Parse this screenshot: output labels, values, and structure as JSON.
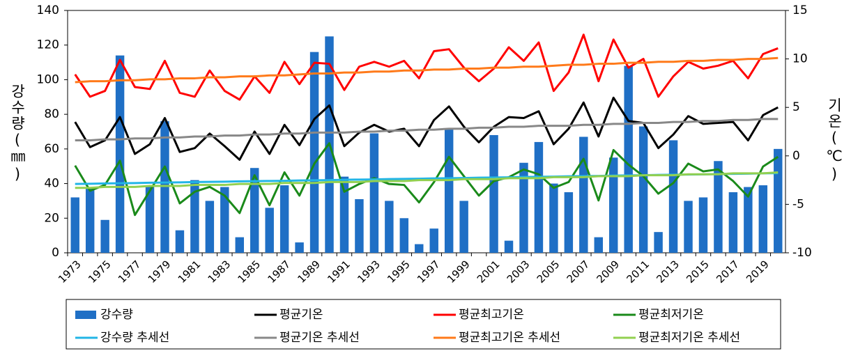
{
  "chart_data": {
    "type": "combo",
    "y_label": "강수량(㎜)",
    "y2_label": "기온(℃)",
    "categories": [
      "1973",
      null,
      "1975",
      null,
      "1977",
      null,
      "1979",
      null,
      "1981",
      null,
      "1983",
      null,
      "1985",
      null,
      "1987",
      null,
      "1989",
      null,
      "1991",
      null,
      "1993",
      null,
      "1995",
      null,
      "1997",
      null,
      "1999",
      null,
      "2001",
      null,
      "2003",
      null,
      "2005",
      null,
      "2007",
      null,
      "2009",
      null,
      "2011",
      null,
      "2013",
      null,
      "2015",
      null,
      "2017",
      null,
      "2019",
      null
    ],
    "ylim": [
      0,
      140
    ],
    "yticks": [
      0,
      20,
      40,
      60,
      80,
      100,
      120,
      140
    ],
    "y2lim": [
      -10,
      15
    ],
    "y2ticks": [
      -10,
      -5,
      0,
      5,
      10,
      15
    ],
    "series": [
      {
        "name": "강수량",
        "type": "bar",
        "color": "#1f6fc5",
        "values": [
          32,
          38,
          19,
          114,
          0,
          38,
          76,
          13,
          42,
          30,
          38,
          9,
          49,
          26,
          39,
          6,
          116,
          125,
          44,
          31,
          69,
          30,
          20,
          5,
          14,
          72,
          30,
          0,
          68,
          7,
          52,
          64,
          40,
          35,
          67,
          9,
          55,
          108,
          73,
          12,
          65,
          30,
          32,
          53,
          35,
          38,
          39,
          60
        ]
      },
      {
        "name": "평균기온",
        "type": "line",
        "axis": "y2",
        "color": "#000000",
        "values": [
          3.5,
          0.9,
          1.6,
          4.0,
          0.2,
          1.2,
          3.9,
          0.4,
          0.8,
          2.3,
          1.0,
          -0.4,
          2.5,
          0.2,
          3.2,
          1.1,
          3.8,
          5.2,
          1.0,
          2.4,
          3.2,
          2.5,
          2.8,
          1.0,
          3.7,
          5.1,
          3.0,
          1.4,
          3.0,
          4.0,
          3.9,
          4.6,
          1.2,
          2.8,
          5.5,
          2.0,
          6.0,
          3.6,
          3.4,
          0.8,
          2.2,
          4.1,
          3.3,
          3.4,
          3.5,
          1.6,
          4.2,
          5.0
        ]
      },
      {
        "name": "평균최고기온",
        "type": "line",
        "axis": "y2",
        "color": "#ff0000",
        "values": [
          8.4,
          6.1,
          6.7,
          9.9,
          7.1,
          6.9,
          9.8,
          6.5,
          6.1,
          8.8,
          6.7,
          5.8,
          8.2,
          6.5,
          9.7,
          7.4,
          9.6,
          9.5,
          6.8,
          9.2,
          9.7,
          9.2,
          9.8,
          8.0,
          10.8,
          11.0,
          9.1,
          7.7,
          9.0,
          11.2,
          9.8,
          11.7,
          6.7,
          8.6,
          12.5,
          7.7,
          12.0,
          9.1,
          10.0,
          6.1,
          8.2,
          9.7,
          9.0,
          9.3,
          9.8,
          8.0,
          10.5,
          11.1
        ]
      },
      {
        "name": "평균최저기온",
        "type": "line",
        "axis": "y2",
        "color": "#1a8a1a",
        "values": [
          -1.0,
          -3.6,
          -3.0,
          -0.5,
          -6.1,
          -3.6,
          -1.1,
          -4.9,
          -3.7,
          -3.2,
          -4.1,
          -5.9,
          -2.0,
          -5.1,
          -1.7,
          -4.1,
          -0.8,
          1.3,
          -3.7,
          -2.9,
          -2.3,
          -2.9,
          -3.0,
          -4.8,
          -2.7,
          -0.1,
          -2.1,
          -4.1,
          -2.6,
          -2.2,
          -1.4,
          -1.9,
          -3.3,
          -2.7,
          -0.3,
          -4.6,
          0.6,
          -0.9,
          -2.1,
          -3.9,
          -2.8,
          -0.8,
          -1.6,
          -1.4,
          -2.6,
          -4.2,
          -1.1,
          -0.1
        ]
      },
      {
        "name": "강수량 추세선",
        "type": "line",
        "color": "#22b5e6",
        "values": [
          39.8,
          39.9,
          40.1,
          40.2,
          40.3,
          40.5,
          40.6,
          40.7,
          40.9,
          41.0,
          41.1,
          41.3,
          41.4,
          41.5,
          41.6,
          41.8,
          41.9,
          42.0,
          42.2,
          42.3,
          42.4,
          42.6,
          42.7,
          42.8,
          43.0,
          43.1,
          43.2,
          43.4,
          43.5,
          43.6,
          43.8,
          43.9,
          44.0,
          44.2,
          44.3,
          44.4,
          44.6,
          44.7,
          44.8,
          45.0,
          45.1,
          45.2,
          45.3,
          45.5,
          45.6,
          45.7,
          45.9,
          46.0
        ]
      },
      {
        "name": "평균기온 추세선",
        "type": "line",
        "axis": "y2",
        "color": "#888888",
        "values": [
          1.6,
          1.6,
          1.7,
          1.7,
          1.8,
          1.8,
          1.9,
          1.9,
          2.0,
          2.0,
          2.1,
          2.1,
          2.2,
          2.2,
          2.3,
          2.3,
          2.4,
          2.4,
          2.4,
          2.5,
          2.5,
          2.6,
          2.6,
          2.7,
          2.7,
          2.8,
          2.8,
          2.9,
          2.9,
          3.0,
          3.0,
          3.1,
          3.1,
          3.1,
          3.2,
          3.2,
          3.3,
          3.3,
          3.4,
          3.4,
          3.5,
          3.5,
          3.6,
          3.6,
          3.7,
          3.7,
          3.8,
          3.8
        ]
      },
      {
        "name": "평균최고기온 추세선",
        "type": "line",
        "axis": "y2",
        "color": "#ff7a1a",
        "values": [
          7.6,
          7.7,
          7.7,
          7.8,
          7.8,
          7.9,
          7.9,
          8.0,
          8.0,
          8.1,
          8.1,
          8.2,
          8.2,
          8.3,
          8.3,
          8.4,
          8.5,
          8.5,
          8.6,
          8.6,
          8.7,
          8.7,
          8.8,
          8.8,
          8.9,
          8.9,
          9.0,
          9.0,
          9.1,
          9.1,
          9.2,
          9.2,
          9.3,
          9.4,
          9.4,
          9.5,
          9.5,
          9.6,
          9.6,
          9.7,
          9.7,
          9.8,
          9.8,
          9.9,
          9.9,
          10.0,
          10.0,
          10.1
        ]
      },
      {
        "name": "평균최저기온 추세선",
        "type": "line",
        "axis": "y2",
        "color": "#92d050",
        "values": [
          -3.3,
          -3.3,
          -3.2,
          -3.2,
          -3.2,
          -3.1,
          -3.1,
          -3.1,
          -3.0,
          -3.0,
          -3.0,
          -2.9,
          -2.9,
          -2.9,
          -2.8,
          -2.8,
          -2.8,
          -2.7,
          -2.7,
          -2.7,
          -2.6,
          -2.6,
          -2.6,
          -2.5,
          -2.5,
          -2.5,
          -2.4,
          -2.4,
          -2.4,
          -2.3,
          -2.3,
          -2.3,
          -2.2,
          -2.2,
          -2.2,
          -2.1,
          -2.1,
          -2.1,
          -2.0,
          -2.0,
          -2.0,
          -1.9,
          -1.9,
          -1.9,
          -1.8,
          -1.8,
          -1.8,
          -1.7
        ]
      }
    ]
  }
}
